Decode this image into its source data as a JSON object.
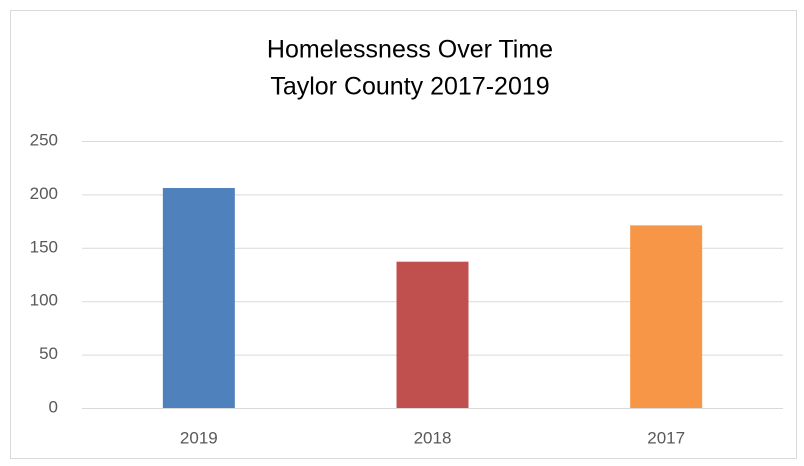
{
  "chart_data": {
    "type": "bar",
    "title": "Homelessness Over Time",
    "subtitle": "Taylor County 2017-2019",
    "categories": [
      "2019",
      "2018",
      "2017"
    ],
    "values": [
      206,
      137,
      171
    ],
    "colors": [
      "#4f81bd",
      "#c0504d",
      "#f79646"
    ],
    "ylim": [
      0,
      250
    ],
    "yticks": [
      0,
      50,
      100,
      150,
      200,
      250
    ],
    "grid": true
  }
}
